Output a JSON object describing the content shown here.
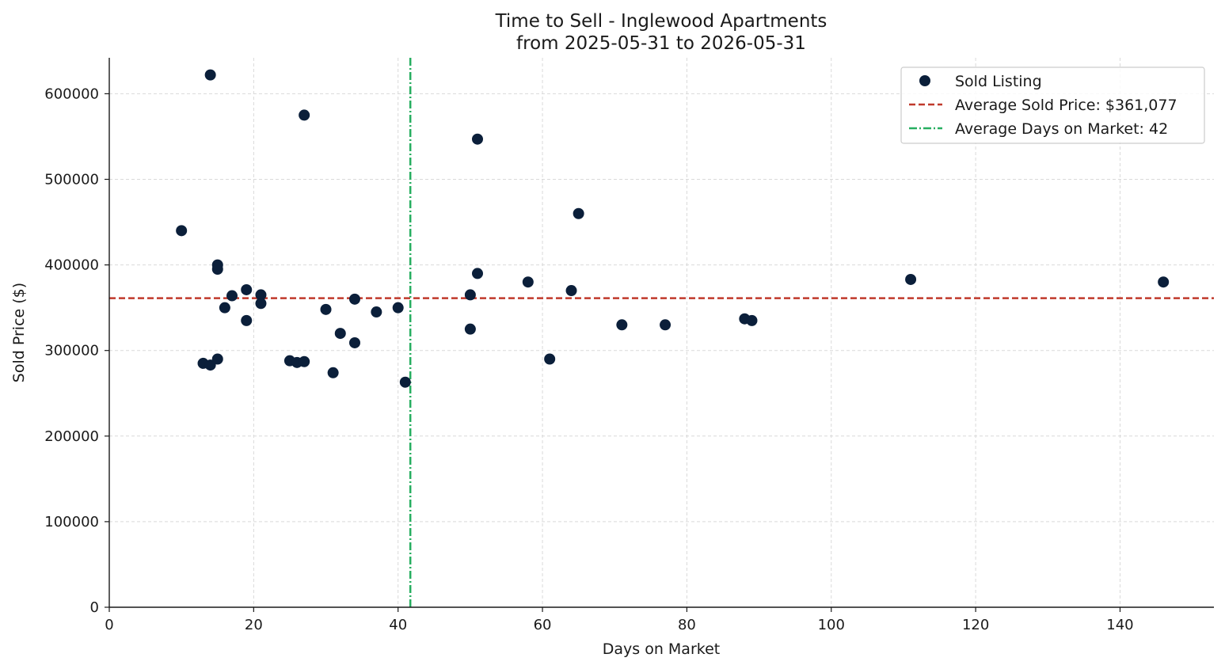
{
  "chart_data": {
    "type": "scatter",
    "title": "Time to Sell - Inglewood Apartments",
    "subtitle": "from 2025-05-31 to 2026-05-31",
    "xlabel": "Days on Market",
    "ylabel": "Sold Price ($)",
    "xlim": [
      0,
      153
    ],
    "ylim": [
      0,
      642000
    ],
    "x_ticks": [
      "0",
      "20",
      "40",
      "60",
      "80",
      "100",
      "120",
      "140"
    ],
    "y_ticks": [
      "0",
      "100000",
      "200000",
      "300000",
      "400000",
      "500000",
      "600000"
    ],
    "grid": true,
    "legend_position": "top-right",
    "series": [
      {
        "name": "Sold Listing",
        "color": "#0b1f3a",
        "points": [
          {
            "x": 10,
            "y": 440000
          },
          {
            "x": 13,
            "y": 285000
          },
          {
            "x": 14,
            "y": 622000
          },
          {
            "x": 14,
            "y": 283000
          },
          {
            "x": 15,
            "y": 400000
          },
          {
            "x": 15,
            "y": 395000
          },
          {
            "x": 15,
            "y": 290000
          },
          {
            "x": 16,
            "y": 350000
          },
          {
            "x": 17,
            "y": 364000
          },
          {
            "x": 19,
            "y": 371000
          },
          {
            "x": 19,
            "y": 335000
          },
          {
            "x": 21,
            "y": 365000
          },
          {
            "x": 21,
            "y": 355000
          },
          {
            "x": 25,
            "y": 288000
          },
          {
            "x": 26,
            "y": 286000
          },
          {
            "x": 27,
            "y": 575000
          },
          {
            "x": 27,
            "y": 287000
          },
          {
            "x": 30,
            "y": 348000
          },
          {
            "x": 31,
            "y": 274000
          },
          {
            "x": 32,
            "y": 320000
          },
          {
            "x": 34,
            "y": 360000
          },
          {
            "x": 34,
            "y": 309000
          },
          {
            "x": 37,
            "y": 345000
          },
          {
            "x": 40,
            "y": 350000
          },
          {
            "x": 41,
            "y": 263000
          },
          {
            "x": 50,
            "y": 365000
          },
          {
            "x": 50,
            "y": 325000
          },
          {
            "x": 51,
            "y": 547000
          },
          {
            "x": 51,
            "y": 390000
          },
          {
            "x": 58,
            "y": 380000
          },
          {
            "x": 61,
            "y": 290000
          },
          {
            "x": 64,
            "y": 370000
          },
          {
            "x": 65,
            "y": 460000
          },
          {
            "x": 71,
            "y": 330000
          },
          {
            "x": 77,
            "y": 330000
          },
          {
            "x": 88,
            "y": 337000
          },
          {
            "x": 89,
            "y": 335000
          },
          {
            "x": 111,
            "y": 383000
          },
          {
            "x": 146,
            "y": 380000
          }
        ]
      }
    ],
    "reference_lines": [
      {
        "name": "Average Sold Price: $361,077",
        "orientation": "horizontal",
        "value": 361077,
        "color": "#c0392b",
        "style": "dashed"
      },
      {
        "name": "Average Days on Market: 42",
        "orientation": "vertical",
        "value": 41.7,
        "color": "#27ae60",
        "style": "dashdot"
      }
    ]
  }
}
